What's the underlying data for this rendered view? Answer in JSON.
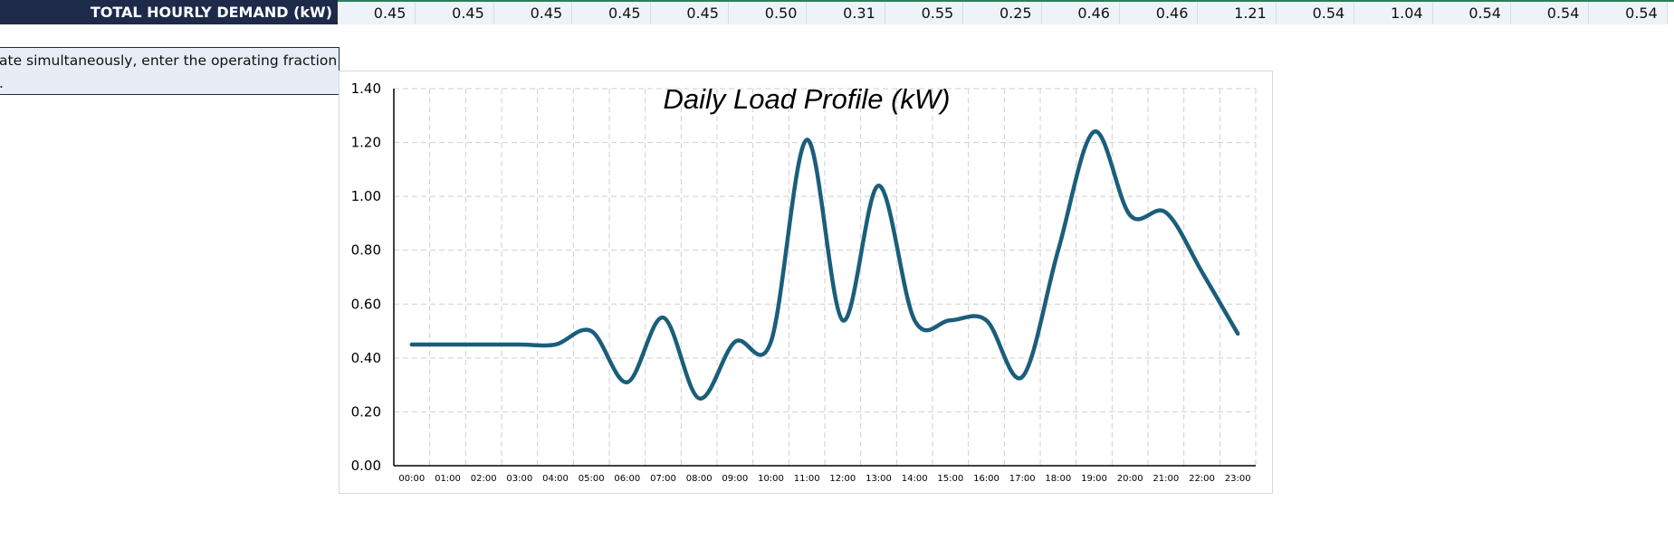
{
  "demand_row": {
    "label": "TOTAL HOURLY DEMAND (kW)",
    "values": [
      "0.45",
      "0.45",
      "0.45",
      "0.45",
      "0.45",
      "0.50",
      "0.31",
      "0.55",
      "0.25",
      "0.46",
      "0.46",
      "1.21",
      "0.54",
      "1.04",
      "0.54",
      "0.54",
      "0.54"
    ]
  },
  "note": {
    "line1": "ate simultaneously, enter the operating fraction of",
    "line2": "."
  },
  "chart_data": {
    "type": "line",
    "title": "Daily Load Profile (kW)",
    "xlabel": "",
    "ylabel": "",
    "categories": [
      "00:00",
      "01:00",
      "02:00",
      "03:00",
      "04:00",
      "05:00",
      "06:00",
      "07:00",
      "08:00",
      "09:00",
      "10:00",
      "11:00",
      "12:00",
      "13:00",
      "14:00",
      "15:00",
      "16:00",
      "17:00",
      "18:00",
      "19:00",
      "20:00",
      "21:00",
      "22:00",
      "23:00"
    ],
    "values": [
      0.45,
      0.45,
      0.45,
      0.45,
      0.45,
      0.5,
      0.31,
      0.55,
      0.25,
      0.46,
      0.46,
      1.21,
      0.54,
      1.04,
      0.54,
      0.54,
      0.54,
      0.33,
      0.8,
      1.24,
      0.93,
      0.94,
      0.72,
      0.49
    ],
    "ylim": [
      0,
      1.4
    ],
    "yticks": [
      "0.00",
      "0.20",
      "0.40",
      "0.60",
      "0.80",
      "1.00",
      "1.20",
      "1.40"
    ],
    "grid": true,
    "smooth": true,
    "legend": "none",
    "line_color": "#1b5e7b"
  }
}
